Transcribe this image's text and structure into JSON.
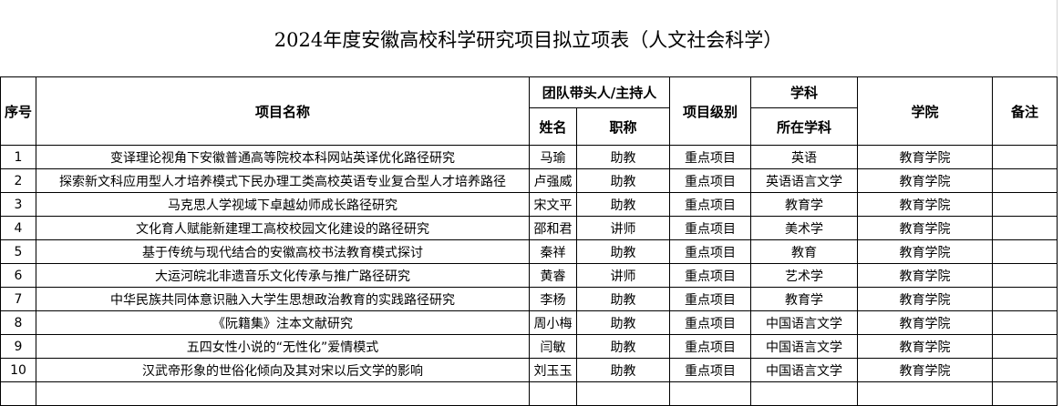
{
  "title": "2024年度安徽高校科学研究项目拟立项表（人文社会科学）",
  "headers": {
    "index": "序号",
    "project_name": "项目名称",
    "leader_group": "团队带头人/主持人",
    "leader_name": "姓名",
    "leader_title": "职称",
    "level": "项目级别",
    "discipline_group": "学科",
    "discipline": "所在学科",
    "college": "学院",
    "remarks": "备注"
  },
  "rows": [
    {
      "index": "1",
      "project": "变译理论视角下安徽普通高等院校本科网站英译优化路径研究",
      "name": "马瑜",
      "title": "助教",
      "level": "重点项目",
      "discipline": "英语",
      "college": "教育学院",
      "remarks": ""
    },
    {
      "index": "2",
      "project": "探索新文科应用型人才培养模式下民办理工类高校英语专业复合型人才培养路径",
      "name": "卢强威",
      "title": "助教",
      "level": "重点项目",
      "discipline": "英语语言文学",
      "college": "教育学院",
      "remarks": ""
    },
    {
      "index": "3",
      "project": "马克思人学视域下卓越幼师成长路径研究",
      "name": "宋文平",
      "title": "助教",
      "level": "重点项目",
      "discipline": "教育学",
      "college": "教育学院",
      "remarks": ""
    },
    {
      "index": "4",
      "project": "文化育人赋能新建理工高校校园文化建设的路径研究",
      "name": "邵和君",
      "title": "讲师",
      "level": "重点项目",
      "discipline": "美术学",
      "college": "教育学院",
      "remarks": ""
    },
    {
      "index": "5",
      "project": "基于传统与现代结合的安徽高校书法教育模式探讨",
      "name": "秦祥",
      "title": "助教",
      "level": "重点项目",
      "discipline": "教育",
      "college": "教育学院",
      "remarks": ""
    },
    {
      "index": "6",
      "project": "大运河皖北非遗音乐文化传承与推广路径研究",
      "name": "黄睿",
      "title": "讲师",
      "level": "重点项目",
      "discipline": "艺术学",
      "college": "教育学院",
      "remarks": ""
    },
    {
      "index": "7",
      "project": "中华民族共同体意识融入大学生思想政治教育的实践路径研究",
      "name": "李杨",
      "title": "助教",
      "level": "重点项目",
      "discipline": "教育学",
      "college": "教育学院",
      "remarks": ""
    },
    {
      "index": "8",
      "project": "《阮籍集》注本文献研究",
      "name": "周小梅",
      "title": "助教",
      "level": "重点项目",
      "discipline": "中国语言文学",
      "college": "教育学院",
      "remarks": ""
    },
    {
      "index": "9",
      "project": "五四女性小说的“无性化”爱情模式",
      "name": "闫敏",
      "title": "助教",
      "level": "重点项目",
      "discipline": "中国语言文学",
      "college": "教育学院",
      "remarks": ""
    },
    {
      "index": "10",
      "project": "汉武帝形象的世俗化倾向及其对宋以后文学的影响",
      "name": "刘玉玉",
      "title": "助教",
      "level": "重点项目",
      "discipline": "中国语言文学",
      "college": "教育学院",
      "remarks": ""
    }
  ]
}
